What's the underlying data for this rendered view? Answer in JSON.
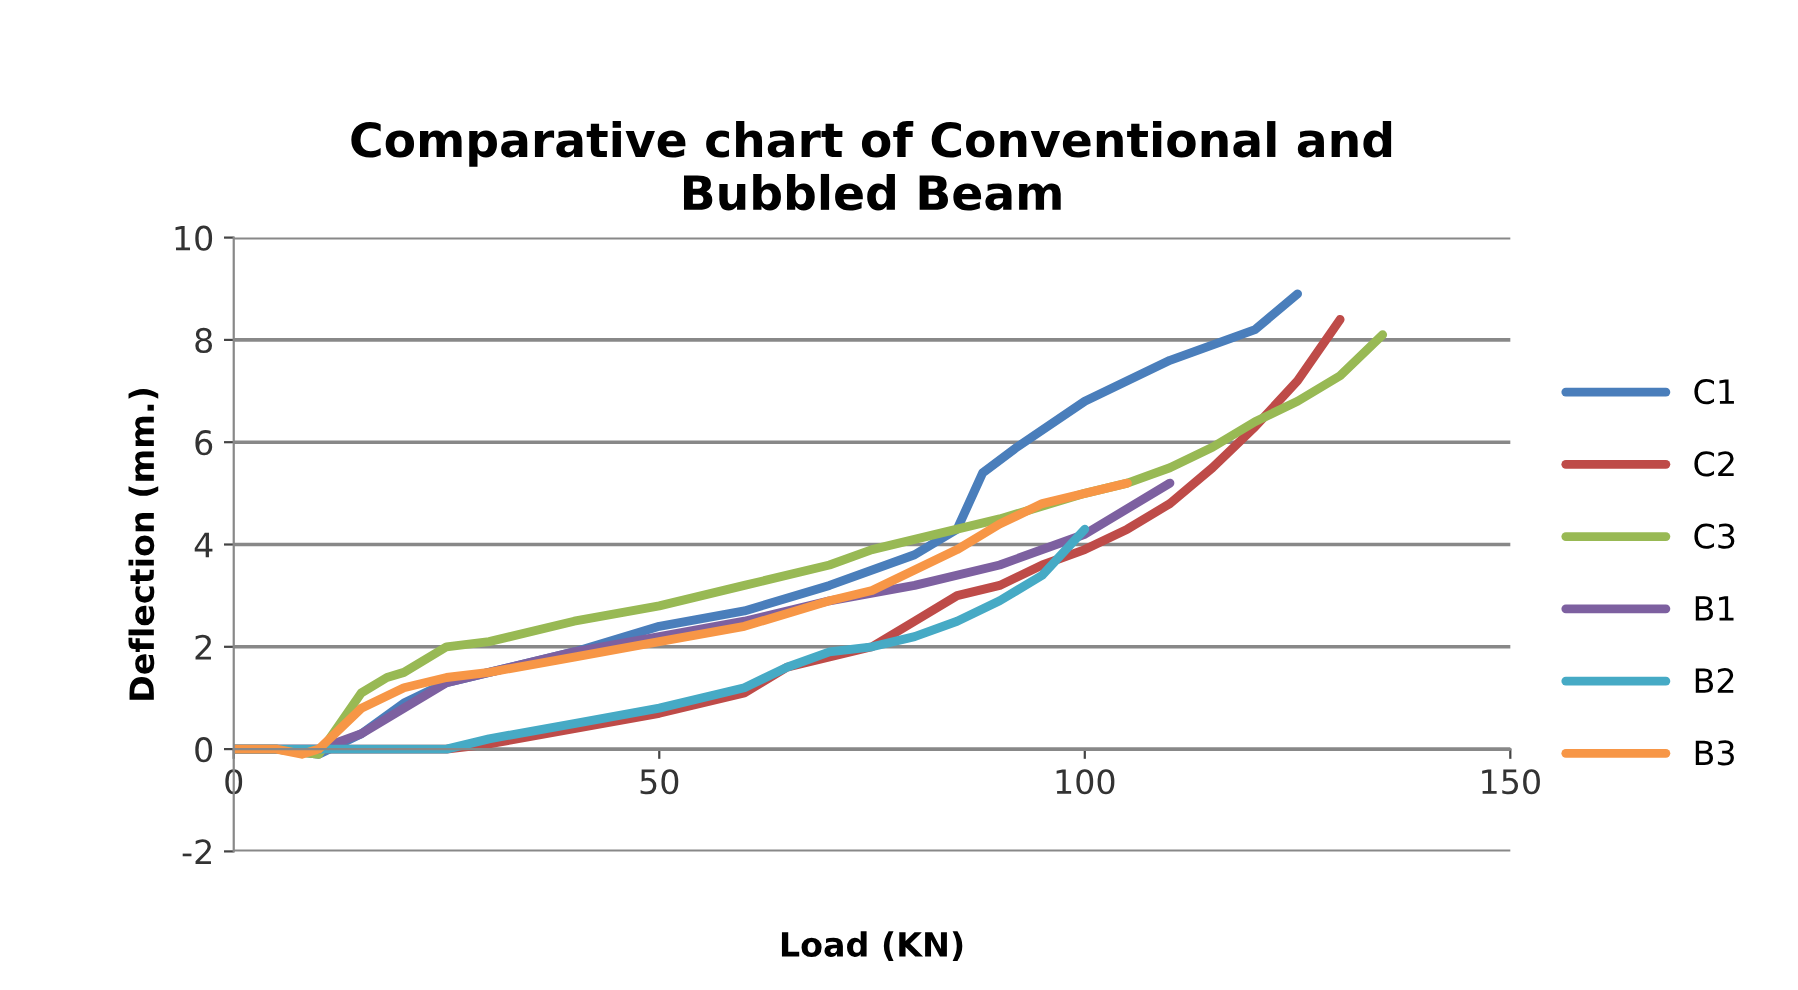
{
  "chart_data": {
    "type": "line",
    "title": "Comparative chart of Conventional and\nBubbled Beam",
    "xlabel": "Load (KN)",
    "ylabel": "Deflection (mm.)",
    "xlim": [
      0,
      150
    ],
    "xticks": [
      0,
      50,
      100,
      150
    ],
    "ylim": [
      -2,
      10
    ],
    "yticks": [
      -2,
      0,
      2,
      4,
      6,
      8,
      10
    ],
    "grid": "y",
    "legend": "right",
    "marker": "none",
    "line_style": "solid",
    "series": [
      {
        "name": "C1",
        "color": "#4a7ebb",
        "x": [
          0,
          5,
          10,
          15,
          20,
          25,
          30,
          40,
          50,
          60,
          70,
          80,
          85,
          88,
          92,
          100,
          110,
          120,
          125
        ],
        "values": [
          0,
          0,
          -0.1,
          0.3,
          0.9,
          1.3,
          1.5,
          1.9,
          2.4,
          2.7,
          3.2,
          3.8,
          4.3,
          5.4,
          5.9,
          6.8,
          7.6,
          8.2,
          8.9
        ]
      },
      {
        "name": "C2",
        "color": "#be4b48",
        "x": [
          0,
          10,
          20,
          25,
          30,
          40,
          50,
          60,
          65,
          70,
          75,
          80,
          85,
          90,
          95,
          100,
          105,
          110,
          115,
          120,
          125,
          130
        ],
        "values": [
          0,
          0,
          0,
          0,
          0.1,
          0.4,
          0.7,
          1.1,
          1.6,
          1.8,
          2.0,
          2.5,
          3.0,
          3.2,
          3.6,
          3.9,
          4.3,
          4.8,
          5.5,
          6.3,
          7.2,
          8.4
        ]
      },
      {
        "name": "C3",
        "color": "#98b954",
        "x": [
          0,
          5,
          10,
          15,
          18,
          20,
          25,
          30,
          40,
          50,
          60,
          70,
          75,
          80,
          90,
          100,
          105,
          110,
          115,
          120,
          125,
          130,
          135
        ],
        "values": [
          0,
          0,
          -0.1,
          1.1,
          1.4,
          1.5,
          2.0,
          2.1,
          2.5,
          2.8,
          3.2,
          3.6,
          3.9,
          4.1,
          4.5,
          5.0,
          5.2,
          5.5,
          5.9,
          6.4,
          6.8,
          7.3,
          8.1
        ]
      },
      {
        "name": "B1",
        "color": "#7d60a0",
        "x": [
          0,
          10,
          15,
          20,
          25,
          30,
          40,
          50,
          60,
          70,
          80,
          90,
          100,
          110
        ],
        "values": [
          0,
          0,
          0.3,
          0.8,
          1.3,
          1.5,
          1.9,
          2.2,
          2.5,
          2.9,
          3.2,
          3.6,
          4.2,
          5.2
        ]
      },
      {
        "name": "B2",
        "color": "#46aac5",
        "x": [
          0,
          10,
          20,
          25,
          30,
          40,
          50,
          60,
          65,
          70,
          75,
          80,
          85,
          90,
          95,
          100
        ],
        "values": [
          0,
          0,
          0,
          0,
          0.2,
          0.5,
          0.8,
          1.2,
          1.6,
          1.9,
          2.0,
          2.2,
          2.5,
          2.9,
          3.4,
          4.3
        ]
      },
      {
        "name": "B3",
        "color": "#f79646",
        "x": [
          0,
          5,
          8,
          10,
          15,
          20,
          25,
          30,
          40,
          50,
          60,
          70,
          75,
          80,
          85,
          90,
          95,
          100,
          105
        ],
        "values": [
          0,
          0,
          -0.1,
          0,
          0.8,
          1.2,
          1.4,
          1.5,
          1.8,
          2.1,
          2.4,
          2.9,
          3.1,
          3.5,
          3.9,
          4.4,
          4.8,
          5.0,
          5.2
        ]
      }
    ]
  }
}
